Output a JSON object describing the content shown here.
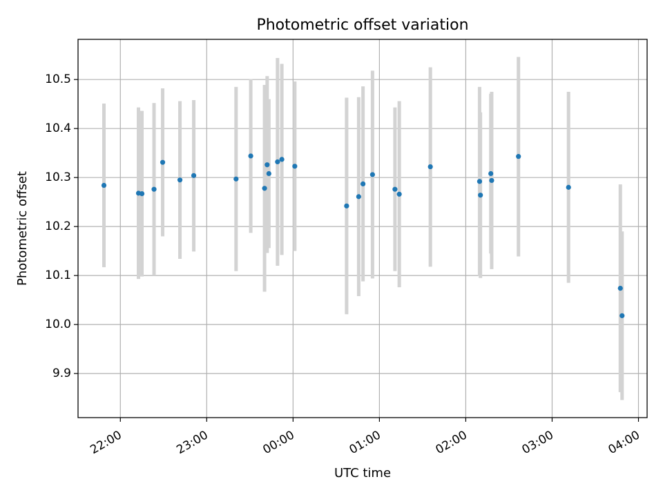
{
  "chart_data": {
    "type": "scatter",
    "title": "Photometric offset variation",
    "xlabel": "UTC time",
    "ylabel": "Photometric offset",
    "x_tick_labels": [
      "22:00",
      "23:00",
      "00:00",
      "01:00",
      "02:00",
      "03:00",
      "04:00"
    ],
    "x_tick_hours": [
      22,
      23,
      24,
      25,
      26,
      27,
      28
    ],
    "y_ticks": [
      9.9,
      10.0,
      10.1,
      10.2,
      10.3,
      10.4,
      10.5
    ],
    "y_tick_labels": [
      "9.9",
      "10.0",
      "10.1",
      "10.2",
      "10.3",
      "10.4",
      "10.5"
    ],
    "xlim_hours": [
      21.51,
      28.1
    ],
    "ylim": [
      9.81,
      10.582
    ],
    "grid": true,
    "point_color": "#1f77b4",
    "errorbar_color": "#d3d3d3",
    "points": [
      {
        "t": 21.81,
        "y": 10.284,
        "lo": 10.117,
        "hi": 10.451
      },
      {
        "t": 22.21,
        "y": 10.268,
        "lo": 10.093,
        "hi": 10.443
      },
      {
        "t": 22.25,
        "y": 10.267,
        "lo": 10.098,
        "hi": 10.436
      },
      {
        "t": 22.39,
        "y": 10.276,
        "lo": 10.1,
        "hi": 10.452
      },
      {
        "t": 22.49,
        "y": 10.331,
        "lo": 10.18,
        "hi": 10.482
      },
      {
        "t": 22.69,
        "y": 10.295,
        "lo": 10.134,
        "hi": 10.456
      },
      {
        "t": 22.85,
        "y": 10.304,
        "lo": 10.149,
        "hi": 10.458
      },
      {
        "t": 23.34,
        "y": 10.297,
        "lo": 10.109,
        "hi": 10.485
      },
      {
        "t": 23.51,
        "y": 10.344,
        "lo": 10.187,
        "hi": 10.501
      },
      {
        "t": 23.67,
        "y": 10.278,
        "lo": 10.067,
        "hi": 10.489
      },
      {
        "t": 23.7,
        "y": 10.326,
        "lo": 10.146,
        "hi": 10.507
      },
      {
        "t": 23.72,
        "y": 10.308,
        "lo": 10.156,
        "hi": 10.46
      },
      {
        "t": 23.82,
        "y": 10.332,
        "lo": 10.12,
        "hi": 10.544
      },
      {
        "t": 23.87,
        "y": 10.337,
        "lo": 10.142,
        "hi": 10.532
      },
      {
        "t": 24.02,
        "y": 10.323,
        "lo": 10.15,
        "hi": 10.496
      },
      {
        "t": 24.62,
        "y": 10.242,
        "lo": 10.021,
        "hi": 10.463
      },
      {
        "t": 24.76,
        "y": 10.261,
        "lo": 10.058,
        "hi": 10.464
      },
      {
        "t": 24.81,
        "y": 10.287,
        "lo": 10.088,
        "hi": 10.486
      },
      {
        "t": 24.92,
        "y": 10.306,
        "lo": 10.094,
        "hi": 10.518
      },
      {
        "t": 25.18,
        "y": 10.276,
        "lo": 10.109,
        "hi": 10.443
      },
      {
        "t": 25.23,
        "y": 10.266,
        "lo": 10.076,
        "hi": 10.456
      },
      {
        "t": 25.59,
        "y": 10.322,
        "lo": 10.118,
        "hi": 10.525
      },
      {
        "t": 26.16,
        "y": 10.292,
        "lo": 10.099,
        "hi": 10.485
      },
      {
        "t": 26.17,
        "y": 10.264,
        "lo": 10.095,
        "hi": 10.433
      },
      {
        "t": 26.29,
        "y": 10.308,
        "lo": 10.145,
        "hi": 10.471
      },
      {
        "t": 26.3,
        "y": 10.294,
        "lo": 10.113,
        "hi": 10.475
      },
      {
        "t": 26.61,
        "y": 10.343,
        "lo": 10.139,
        "hi": 10.546
      },
      {
        "t": 27.19,
        "y": 10.28,
        "lo": 10.085,
        "hi": 10.475
      },
      {
        "t": 27.79,
        "y": 10.074,
        "lo": 9.862,
        "hi": 10.286
      },
      {
        "t": 27.81,
        "y": 10.018,
        "lo": 9.846,
        "hi": 10.19
      }
    ]
  }
}
